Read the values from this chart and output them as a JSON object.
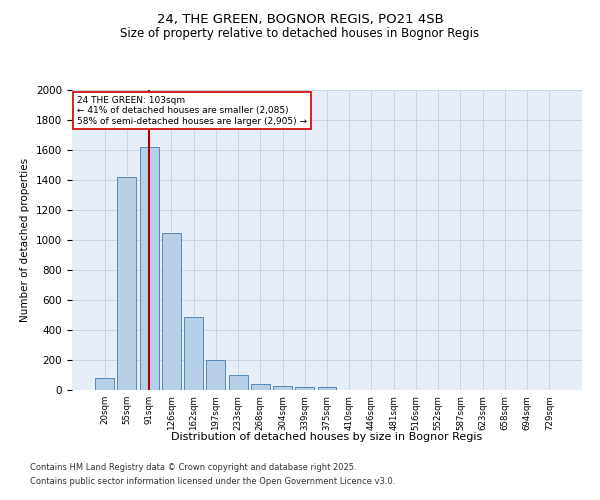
{
  "title1": "24, THE GREEN, BOGNOR REGIS, PO21 4SB",
  "title2": "Size of property relative to detached houses in Bognor Regis",
  "xlabel": "Distribution of detached houses by size in Bognor Regis",
  "ylabel": "Number of detached properties",
  "bar_labels": [
    "20sqm",
    "55sqm",
    "91sqm",
    "126sqm",
    "162sqm",
    "197sqm",
    "233sqm",
    "268sqm",
    "304sqm",
    "339sqm",
    "375sqm",
    "410sqm",
    "446sqm",
    "481sqm",
    "516sqm",
    "552sqm",
    "587sqm",
    "623sqm",
    "658sqm",
    "694sqm",
    "729sqm"
  ],
  "bar_values": [
    80,
    1420,
    1620,
    1050,
    490,
    200,
    100,
    40,
    30,
    20,
    20,
    0,
    0,
    0,
    0,
    0,
    0,
    0,
    0,
    0,
    0
  ],
  "bar_color": "#b8cfe8",
  "bar_edge_color": "#5588bb",
  "grid_color": "#c8d4e8",
  "background_color": "#e8eef8",
  "vline_x_index": 2,
  "vline_color": "#aa0000",
  "annotation_text": "24 THE GREEN: 103sqm\n← 41% of detached houses are smaller (2,085)\n58% of semi-detached houses are larger (2,905) →",
  "annotation_box_color": "#ffffff",
  "annotation_box_edge_color": "#cc0000",
  "ylim": [
    0,
    2000
  ],
  "yticks": [
    0,
    200,
    400,
    600,
    800,
    1000,
    1200,
    1400,
    1600,
    1800,
    2000
  ],
  "footer1": "Contains HM Land Registry data © Crown copyright and database right 2025.",
  "footer2": "Contains public sector information licensed under the Open Government Licence v3.0."
}
